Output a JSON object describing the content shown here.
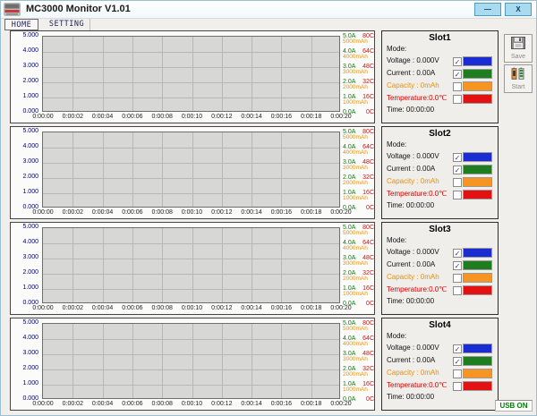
{
  "window": {
    "title": "MC3000 Monitor V1.01",
    "minimize_label": "—",
    "close_label": "X"
  },
  "tabs": [
    {
      "label": "HOME",
      "active": true
    },
    {
      "label": "SETTING",
      "active": false
    }
  ],
  "chart_data": {
    "type": "line",
    "note": "four identical empty monitoring charts, one per slot; no series plotted yet",
    "x_ticks": [
      "0:00:00",
      "0:00:02",
      "0:00:04",
      "0:00:06",
      "0:00:08",
      "0:00:10",
      "0:00:12",
      "0:00:14",
      "0:00:16",
      "0:00:18",
      "0:00:20"
    ],
    "axes": {
      "voltage": {
        "side": "left",
        "color": "#00006a",
        "ticks": [
          "5.000",
          "4.000",
          "3.000",
          "2.000",
          "1.000",
          "0.000"
        ]
      },
      "current": {
        "side": "right",
        "color": "#0b7d0b",
        "ticks": [
          "5.0A",
          "4.0A",
          "3.0A",
          "2.0A",
          "1.0A",
          "0.0A"
        ]
      },
      "temperature": {
        "side": "right",
        "color": "#cc1111",
        "ticks": [
          "80C",
          "64C",
          "48C",
          "32C",
          "16C",
          "0C"
        ]
      },
      "capacity": {
        "side": "right",
        "color": "#e8920a",
        "ticks": [
          "5000mAh",
          "4000mAh",
          "3000mAh",
          "2000mAh",
          "1000mAh"
        ]
      }
    },
    "series": [],
    "grid": true
  },
  "slots": [
    {
      "title": "Slot1",
      "mode_label": "Mode:",
      "time_label": "Time: 00:00:00",
      "rows": [
        {
          "name": "voltage",
          "label": "Voltage : 0.000V",
          "checked": true,
          "swatch": "#1b2dd2",
          "text_color": "#111111"
        },
        {
          "name": "current",
          "label": "Current : 0.00A",
          "checked": true,
          "swatch": "#1e7d1e",
          "text_color": "#111111"
        },
        {
          "name": "capacity",
          "label": "Capacity : 0mAh",
          "checked": false,
          "swatch": "#f79422",
          "text_color": "#e8920a"
        },
        {
          "name": "temperature",
          "label": "Temperature:0.0℃",
          "checked": false,
          "swatch": "#e31111",
          "text_color": "#d20000"
        }
      ]
    },
    {
      "title": "Slot2",
      "mode_label": "Mode:",
      "time_label": "Time: 00:00:00",
      "rows": [
        {
          "name": "voltage",
          "label": "Voltage : 0.000V",
          "checked": true,
          "swatch": "#1b2dd2",
          "text_color": "#111111"
        },
        {
          "name": "current",
          "label": "Current : 0.00A",
          "checked": true,
          "swatch": "#1e7d1e",
          "text_color": "#111111"
        },
        {
          "name": "capacity",
          "label": "Capacity : 0mAh",
          "checked": false,
          "swatch": "#f79422",
          "text_color": "#e8920a"
        },
        {
          "name": "temperature",
          "label": "Temperature:0.0℃",
          "checked": false,
          "swatch": "#e31111",
          "text_color": "#d20000"
        }
      ]
    },
    {
      "title": "Slot3",
      "mode_label": "Mode:",
      "time_label": "Time: 00:00:00",
      "rows": [
        {
          "name": "voltage",
          "label": "Voltage : 0.000V",
          "checked": true,
          "swatch": "#1b2dd2",
          "text_color": "#111111"
        },
        {
          "name": "current",
          "label": "Current : 0.00A",
          "checked": true,
          "swatch": "#1e7d1e",
          "text_color": "#111111"
        },
        {
          "name": "capacity",
          "label": "Capacity : 0mAh",
          "checked": false,
          "swatch": "#f79422",
          "text_color": "#e8920a"
        },
        {
          "name": "temperature",
          "label": "Temperature:0.0℃",
          "checked": false,
          "swatch": "#e31111",
          "text_color": "#d20000"
        }
      ]
    },
    {
      "title": "Slot4",
      "mode_label": "Mode:",
      "time_label": "Time: 00:00:00",
      "rows": [
        {
          "name": "voltage",
          "label": "Voltage : 0.000V",
          "checked": true,
          "swatch": "#1b2dd2",
          "text_color": "#111111"
        },
        {
          "name": "current",
          "label": "Current : 0.00A",
          "checked": true,
          "swatch": "#1e7d1e",
          "text_color": "#111111"
        },
        {
          "name": "capacity",
          "label": "Capacity : 0mAh",
          "checked": false,
          "swatch": "#f79422",
          "text_color": "#e8920a"
        },
        {
          "name": "temperature",
          "label": "Temperature:0.0℃",
          "checked": false,
          "swatch": "#e31111",
          "text_color": "#d20000"
        }
      ]
    }
  ],
  "side_buttons": {
    "save_label": "Save",
    "start_label": "Start"
  },
  "status_bar": {
    "usb_label": "USB ON",
    "usb_color": "#0a7a0a"
  }
}
